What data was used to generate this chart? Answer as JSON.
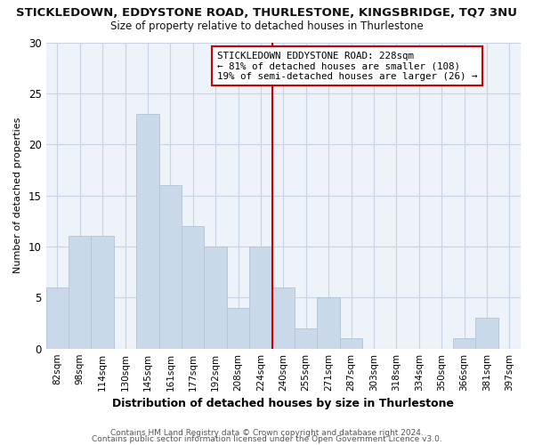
{
  "title": "STICKLEDOWN, EDDYSTONE ROAD, THURLESTONE, KINGSBRIDGE, TQ7 3NU",
  "subtitle": "Size of property relative to detached houses in Thurlestone",
  "xlabel": "Distribution of detached houses by size in Thurlestone",
  "ylabel": "Number of detached properties",
  "bar_labels": [
    "82sqm",
    "98sqm",
    "114sqm",
    "130sqm",
    "145sqm",
    "161sqm",
    "177sqm",
    "192sqm",
    "208sqm",
    "224sqm",
    "240sqm",
    "255sqm",
    "271sqm",
    "287sqm",
    "303sqm",
    "318sqm",
    "334sqm",
    "350sqm",
    "366sqm",
    "381sqm",
    "397sqm"
  ],
  "bar_values": [
    6,
    11,
    11,
    0,
    23,
    16,
    12,
    10,
    4,
    10,
    6,
    2,
    5,
    1,
    0,
    0,
    0,
    0,
    1,
    3,
    0
  ],
  "bar_color": "#c9d9ea",
  "bar_edge_color": "#afc4d6",
  "vline_x": 9.5,
  "vline_color": "#cc0000",
  "annotation_line1": "STICKLEDOWN EDDYSTONE ROAD: 228sqm",
  "annotation_line2": "← 81% of detached houses are smaller (108)",
  "annotation_line3": "19% of semi-detached houses are larger (26) →",
  "ylim": [
    0,
    30
  ],
  "yticks": [
    0,
    5,
    10,
    15,
    20,
    25,
    30
  ],
  "footer1": "Contains HM Land Registry data © Crown copyright and database right 2024.",
  "footer2": "Contains public sector information licensed under the Open Government Licence v3.0.",
  "background_color": "#ffffff",
  "plot_bg_color": "#eef2f9",
  "grid_color": "#c8d4e4"
}
